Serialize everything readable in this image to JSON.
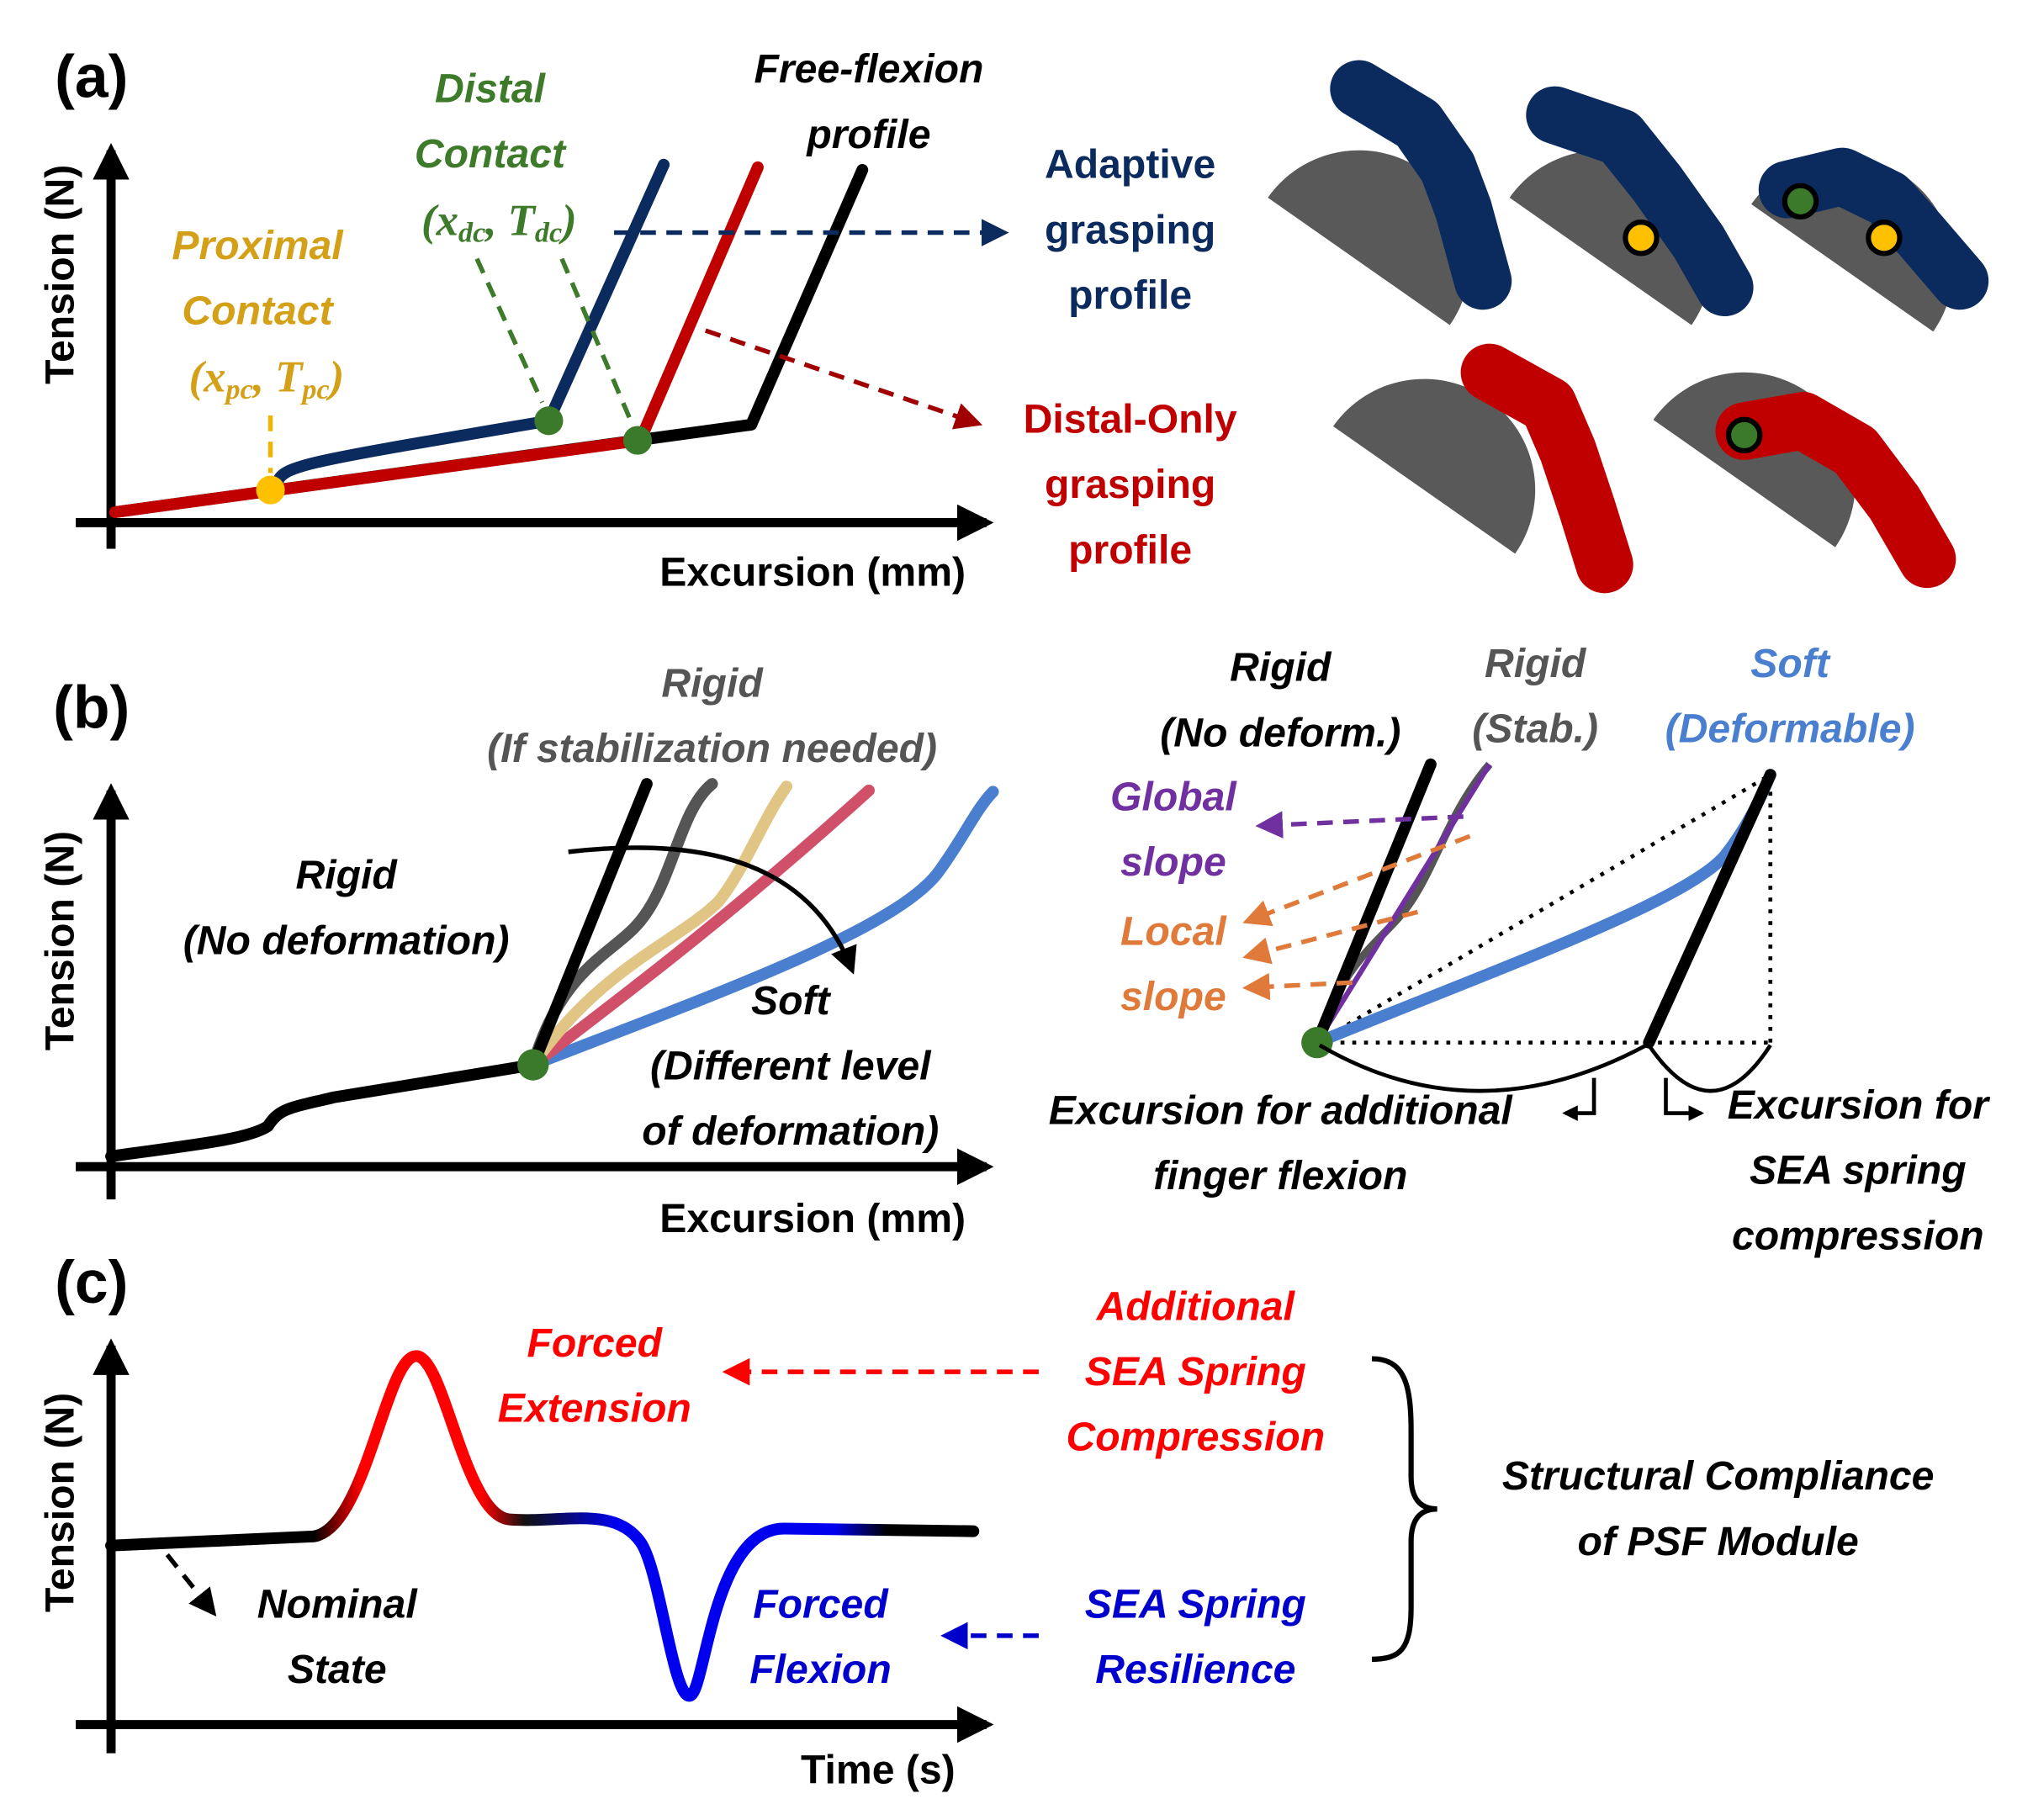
{
  "panel_a": {
    "label": "(a)",
    "y_axis": "Tension (N)",
    "x_axis": "Excursion (mm)",
    "distal_contact": {
      "lines": [
        "Distal",
        "Contact"
      ],
      "coords": [
        "(",
        "x",
        "dc",
        ", ",
        "T",
        "dc",
        ")"
      ]
    },
    "proximal_contact": {
      "lines": [
        "Proximal",
        "Contact"
      ],
      "coords": [
        "(",
        "x",
        "pc",
        ", ",
        "T",
        "pc",
        ")"
      ]
    },
    "free_flexion": [
      "Free-flexion",
      "profile"
    ],
    "adaptive": [
      "Adaptive",
      "grasping",
      "profile"
    ],
    "distal_only": [
      "Distal-Only",
      "grasping",
      "profile"
    ]
  },
  "panel_b": {
    "label": "(b)",
    "y_axis": "Tension (N)",
    "x_axis": "Excursion (mm)",
    "rigid_stab": [
      "Rigid",
      "(If stabilization needed)"
    ],
    "rigid_none": [
      "Rigid",
      "(No deformation)"
    ],
    "soft": [
      "Soft",
      "(Different level",
      "of deformation)"
    ],
    "right_rigid": [
      "Rigid",
      "(No deform.)"
    ],
    "right_rigid_stab": [
      "Rigid",
      "(Stab.)"
    ],
    "right_soft": [
      "Soft",
      "(Deformable)"
    ],
    "global_slope": [
      "Global",
      "slope"
    ],
    "local_slope": [
      "Local",
      "slope"
    ],
    "excursion_flexion": [
      "Excursion for additional",
      "finger flexion"
    ],
    "excursion_spring": [
      "Excursion for",
      "SEA spring",
      "compression"
    ]
  },
  "panel_c": {
    "label": "(c)",
    "y_axis": "Tension (N)",
    "x_axis": "Time (s)",
    "forced_extension": [
      "Forced",
      "Extension"
    ],
    "additional_compression": [
      "Additional",
      "SEA Spring",
      "Compression"
    ],
    "structural": [
      "Structural Compliance",
      "of PSF Module"
    ],
    "nominal": [
      "Nominal",
      "State"
    ],
    "forced_flexion": [
      "Forced",
      "Flexion"
    ],
    "resilience": [
      "SEA Spring",
      "Resilience"
    ]
  }
}
